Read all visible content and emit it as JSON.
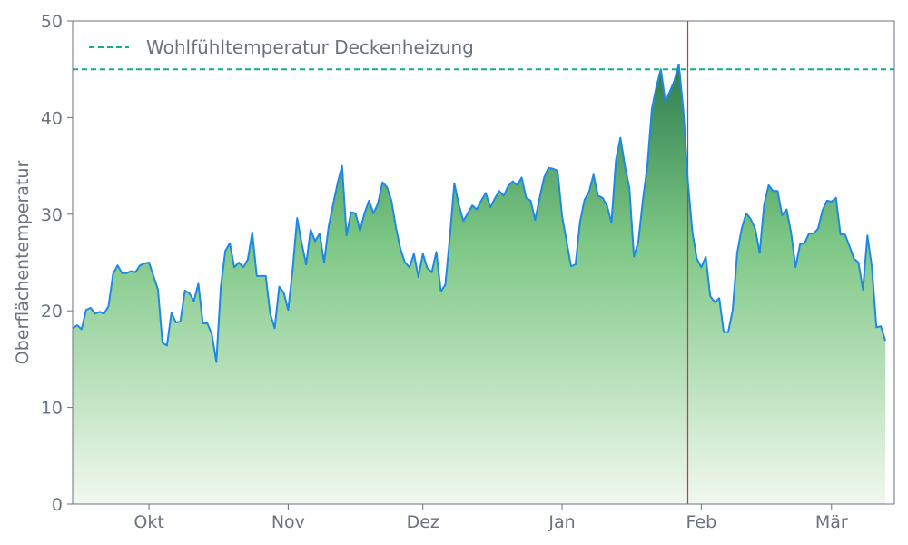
{
  "chart_data": {
    "type": "area",
    "ylabel": "Oberflächentemperatur",
    "ylim": [
      0,
      50
    ],
    "y_ticks": [
      0,
      10,
      20,
      30,
      40,
      50
    ],
    "x_range": [
      "2023-09-14",
      "2024-03-15"
    ],
    "x_ticks": [
      {
        "date": "2023-10-01",
        "label": "Okt"
      },
      {
        "date": "2023-11-01",
        "label": "Nov"
      },
      {
        "date": "2023-12-01",
        "label": "Dez"
      },
      {
        "date": "2024-01-01",
        "label": "Jan"
      },
      {
        "date": "2024-02-01",
        "label": "Feb"
      },
      {
        "date": "2024-03-01",
        "label": "Mär"
      }
    ],
    "grid": false,
    "legend_position": "top-left",
    "colors": {
      "line": "#1e88e5",
      "area_top": "#2e7d4f",
      "area_bottom": "#f1f8ee",
      "reference": "#11b08a",
      "marker": "#b5423c",
      "axis": "#6b7280"
    },
    "reference_line": {
      "value": 45,
      "label": "Wohlfühltemperatur Deckenheizung"
    },
    "marker_line": {
      "date": "2024-01-29"
    },
    "x_start": "2023-09-14",
    "values": [
      18.2,
      18.5,
      18.1,
      20.1,
      20.3,
      19.7,
      19.9,
      19.7,
      20.5,
      23.8,
      24.7,
      23.9,
      23.9,
      24.1,
      24.0,
      24.7,
      24.9,
      25.0,
      23.6,
      22.2,
      16.7,
      16.4,
      19.8,
      18.8,
      18.9,
      22.1,
      21.8,
      21.0,
      22.8,
      18.7,
      18.7,
      17.6,
      14.7,
      22.5,
      26.2,
      27.0,
      24.5,
      25.0,
      24.5,
      25.3,
      28.1,
      23.6,
      23.6,
      23.6,
      19.7,
      18.2,
      22.5,
      21.9,
      20.1,
      24.3,
      29.6,
      27.0,
      24.8,
      28.4,
      27.2,
      28.0,
      25.0,
      28.7,
      31.0,
      33.2,
      35.0,
      27.8,
      30.2,
      30.1,
      28.3,
      30.1,
      31.4,
      30.1,
      31.1,
      33.3,
      32.8,
      31.4,
      28.6,
      26.4,
      25.0,
      24.5,
      25.9,
      23.5,
      25.9,
      24.4,
      24.0,
      26.1,
      22.0,
      22.7,
      27.6,
      33.2,
      31.0,
      29.3,
      30.1,
      30.9,
      30.5,
      31.4,
      32.2,
      30.7,
      31.6,
      32.4,
      31.9,
      32.9,
      33.4,
      33.0,
      33.8,
      31.7,
      31.4,
      29.4,
      31.7,
      33.8,
      34.8,
      34.7,
      34.5,
      29.8,
      27.2,
      24.6,
      24.8,
      29.2,
      31.5,
      32.3,
      34.1,
      31.9,
      31.7,
      30.9,
      29.1,
      35.6,
      37.9,
      35.0,
      32.7,
      25.6,
      27.2,
      31.5,
      35.0,
      40.9,
      43.2,
      45.0,
      41.6,
      42.7,
      43.8,
      45.5,
      40.8,
      33.5,
      28.2,
      25.4,
      24.5,
      25.6,
      21.5,
      20.9,
      21.3,
      17.8,
      17.8,
      20.1,
      26.0,
      28.5,
      30.1,
      29.5,
      28.5,
      26.0,
      31.0,
      33.0,
      32.4,
      32.4,
      29.9,
      30.5,
      28.1,
      24.5,
      26.9,
      27.0,
      28.0,
      28.0,
      28.5,
      30.4,
      31.4,
      31.3,
      31.7,
      27.9,
      27.9,
      26.7,
      25.4,
      25.0,
      22.2,
      27.8,
      24.5,
      18.3,
      18.4,
      16.9
    ]
  }
}
